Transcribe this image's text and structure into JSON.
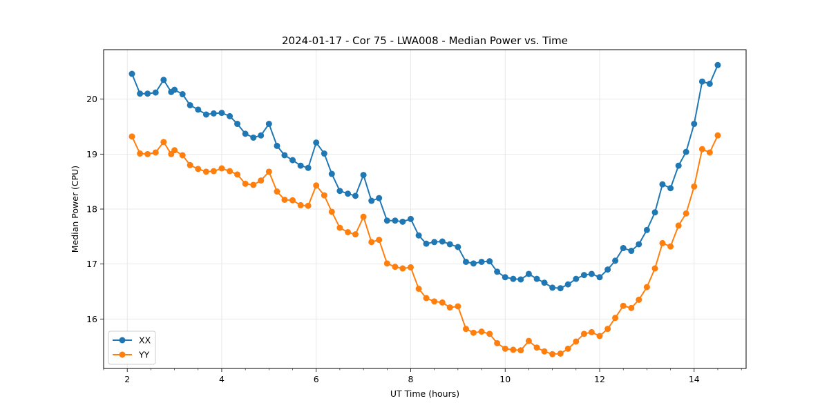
{
  "chart_data": {
    "type": "line",
    "title": "2024-01-17 - Cor 75 - LWA008 - Median Power vs. Time",
    "xlabel": "UT Time (hours)",
    "ylabel": "Median Power (CPU)",
    "xlim": [
      1.5,
      15.1
    ],
    "ylim": [
      15.1,
      20.9
    ],
    "xticks": [
      2,
      4,
      6,
      8,
      10,
      12,
      14
    ],
    "yticks": [
      16,
      17,
      18,
      19,
      20
    ],
    "grid": true,
    "legend_position": "lower-left",
    "x": [
      2.1,
      2.27,
      2.43,
      2.6,
      2.77,
      2.93,
      3.0,
      3.17,
      3.33,
      3.5,
      3.67,
      3.83,
      4.0,
      4.17,
      4.33,
      4.5,
      4.67,
      4.83,
      5.0,
      5.17,
      5.33,
      5.5,
      5.67,
      5.83,
      6.0,
      6.17,
      6.33,
      6.5,
      6.67,
      6.83,
      7.0,
      7.17,
      7.33,
      7.5,
      7.67,
      7.83,
      8.0,
      8.17,
      8.33,
      8.5,
      8.67,
      8.83,
      9.0,
      9.17,
      9.33,
      9.5,
      9.67,
      9.83,
      10.0,
      10.17,
      10.33,
      10.5,
      10.67,
      10.83,
      11.0,
      11.17,
      11.33,
      11.5,
      11.67,
      11.83,
      12.0,
      12.17,
      12.33,
      12.5,
      12.67,
      12.83,
      13.0,
      13.17,
      13.33,
      13.5,
      13.67,
      13.83,
      14.0,
      14.17,
      14.33,
      14.5
    ],
    "series": [
      {
        "name": "XX",
        "color": "#1f77b4",
        "values": [
          20.46,
          20.1,
          20.1,
          20.12,
          20.35,
          20.13,
          20.17,
          20.09,
          19.89,
          19.81,
          19.72,
          19.74,
          19.75,
          19.69,
          19.55,
          19.37,
          19.3,
          19.34,
          19.55,
          19.15,
          18.98,
          18.89,
          18.79,
          18.75,
          19.21,
          19.01,
          18.64,
          18.33,
          18.28,
          18.24,
          18.62,
          18.15,
          18.2,
          17.79,
          17.79,
          17.77,
          17.82,
          17.52,
          17.37,
          17.4,
          17.41,
          17.36,
          17.31,
          17.04,
          17.01,
          17.04,
          17.05,
          16.86,
          16.76,
          16.73,
          16.72,
          16.82,
          16.73,
          16.66,
          16.57,
          16.56,
          16.63,
          16.73,
          16.8,
          16.82,
          16.76,
          16.9,
          17.06,
          17.29,
          17.24,
          17.36,
          17.62,
          17.94,
          18.45,
          18.38,
          18.79,
          19.04,
          19.55,
          20.32,
          20.28,
          20.62
        ]
      },
      {
        "name": "YY",
        "color": "#ff7f0e",
        "values": [
          19.32,
          19.01,
          19.0,
          19.03,
          19.22,
          19.0,
          19.07,
          18.98,
          18.8,
          18.73,
          18.68,
          18.69,
          18.74,
          18.69,
          18.63,
          18.46,
          18.44,
          18.52,
          18.68,
          18.32,
          18.17,
          18.16,
          18.07,
          18.06,
          18.43,
          18.25,
          17.95,
          17.66,
          17.58,
          17.54,
          17.86,
          17.4,
          17.44,
          17.01,
          16.95,
          16.92,
          16.94,
          16.55,
          16.38,
          16.32,
          16.3,
          16.21,
          16.23,
          15.82,
          15.75,
          15.77,
          15.73,
          15.56,
          15.46,
          15.44,
          15.43,
          15.6,
          15.48,
          15.41,
          15.36,
          15.37,
          15.46,
          15.59,
          15.73,
          15.76,
          15.69,
          15.82,
          16.02,
          16.24,
          16.2,
          16.35,
          16.58,
          16.92,
          17.38,
          17.32,
          17.7,
          17.92,
          18.41,
          19.09,
          19.03,
          19.34
        ]
      }
    ]
  }
}
